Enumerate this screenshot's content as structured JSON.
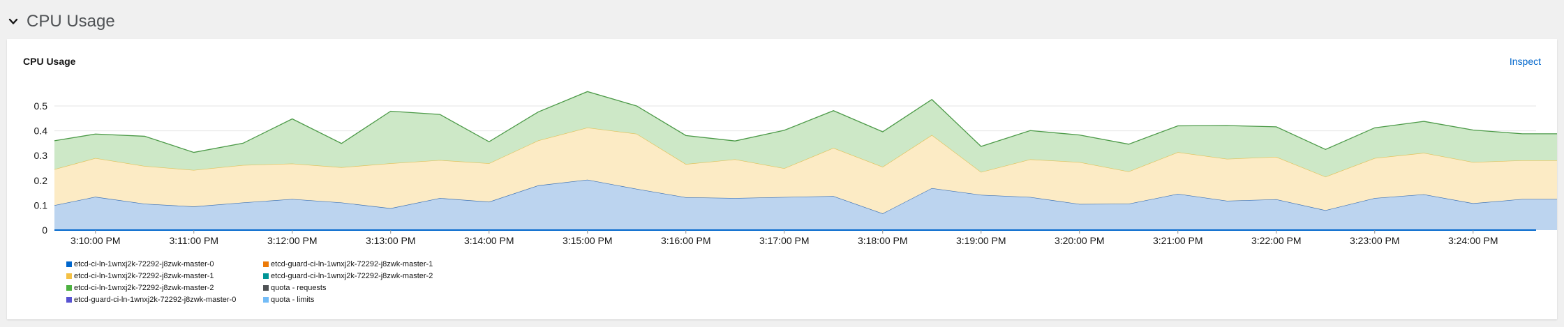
{
  "section": {
    "title": "CPU Usage",
    "chevron_icon": "chevron-down-icon"
  },
  "card": {
    "title": "CPU Usage",
    "inspect_label": "Inspect"
  },
  "chart_data": {
    "type": "area",
    "stacked": true,
    "x": [
      "3:09:35",
      "3:10:00",
      "3:10:30",
      "3:11:00",
      "3:11:30",
      "3:12:00",
      "3:12:30",
      "3:13:00",
      "3:13:30",
      "3:14:00",
      "3:14:30",
      "3:15:00",
      "3:15:30",
      "3:16:00",
      "3:16:30",
      "3:17:00",
      "3:17:30",
      "3:18:00",
      "3:18:30",
      "3:19:00",
      "3:19:30",
      "3:20:00",
      "3:20:30",
      "3:21:00",
      "3:21:30",
      "3:22:00",
      "3:22:30",
      "3:23:00",
      "3:23:30",
      "3:24:00",
      "3:24:30",
      "3:25:00"
    ],
    "x_tick_labels": [
      "3:10:00 PM",
      "3:11:00 PM",
      "3:12:00 PM",
      "3:13:00 PM",
      "3:14:00 PM",
      "3:15:00 PM",
      "3:16:00 PM",
      "3:17:00 PM",
      "3:18:00 PM",
      "3:19:00 PM",
      "3:20:00 PM",
      "3:21:00 PM",
      "3:22:00 PM",
      "3:23:00 PM",
      "3:24:00 PM"
    ],
    "y_ticks": [
      0,
      0.1,
      0.2,
      0.3,
      0.4,
      0.5
    ],
    "ylim": [
      0,
      0.57
    ],
    "series": [
      {
        "name": "etcd-ci-ln-1wnxj2k-72292-j8zwk-master-0",
        "color": "#2b6fc1",
        "fill": "#bcd4ef",
        "stroke": "#3b71b5",
        "values": [
          0.1,
          0.134,
          0.106,
          0.095,
          0.111,
          0.125,
          0.111,
          0.088,
          0.129,
          0.114,
          0.18,
          0.203,
          0.166,
          0.132,
          0.129,
          0.133,
          0.137,
          0.067,
          0.169,
          0.142,
          0.133,
          0.105,
          0.106,
          0.146,
          0.118,
          0.124,
          0.08,
          0.129,
          0.144,
          0.108,
          0.125,
          0.125
        ]
      },
      {
        "name": "etcd-ci-ln-1wnxj2k-72292-j8zwk-master-1",
        "color": "#f0ab00",
        "fill": "#fcebc5",
        "stroke": "#e0c25a",
        "values": [
          0.145,
          0.156,
          0.152,
          0.147,
          0.151,
          0.143,
          0.142,
          0.181,
          0.153,
          0.155,
          0.181,
          0.21,
          0.222,
          0.134,
          0.156,
          0.116,
          0.194,
          0.188,
          0.214,
          0.092,
          0.152,
          0.169,
          0.13,
          0.168,
          0.169,
          0.171,
          0.135,
          0.161,
          0.167,
          0.166,
          0.156,
          0.156
        ]
      },
      {
        "name": "etcd-ci-ln-1wnxj2k-72292-j8zwk-master-2",
        "color": "#3e9c35",
        "fill": "#cde8c7",
        "stroke": "#4c9a48",
        "values": [
          0.115,
          0.097,
          0.12,
          0.071,
          0.088,
          0.18,
          0.096,
          0.21,
          0.184,
          0.087,
          0.115,
          0.145,
          0.112,
          0.115,
          0.074,
          0.153,
          0.15,
          0.141,
          0.143,
          0.103,
          0.116,
          0.109,
          0.11,
          0.106,
          0.134,
          0.121,
          0.11,
          0.122,
          0.127,
          0.129,
          0.107,
          0.107
        ]
      }
    ],
    "legend": [
      {
        "label": "etcd-ci-ln-1wnxj2k-72292-j8zwk-master-0",
        "color": "#0066cc"
      },
      {
        "label": "etcd-guard-ci-ln-1wnxj2k-72292-j8zwk-master-1",
        "color": "#ec7a08"
      },
      {
        "label": "etcd-ci-ln-1wnxj2k-72292-j8zwk-master-1",
        "color": "#f4c145"
      },
      {
        "label": "etcd-guard-ci-ln-1wnxj2k-72292-j8zwk-master-2",
        "color": "#009596"
      },
      {
        "label": "etcd-ci-ln-1wnxj2k-72292-j8zwk-master-2",
        "color": "#4cb140"
      },
      {
        "label": "quota - requests",
        "color": "#4f5255"
      },
      {
        "label": "etcd-guard-ci-ln-1wnxj2k-72292-j8zwk-master-0",
        "color": "#5752d1"
      },
      {
        "label": "quota - limits",
        "color": "#73bcf7"
      }
    ],
    "grid": true,
    "legend_position": "bottom-left"
  }
}
